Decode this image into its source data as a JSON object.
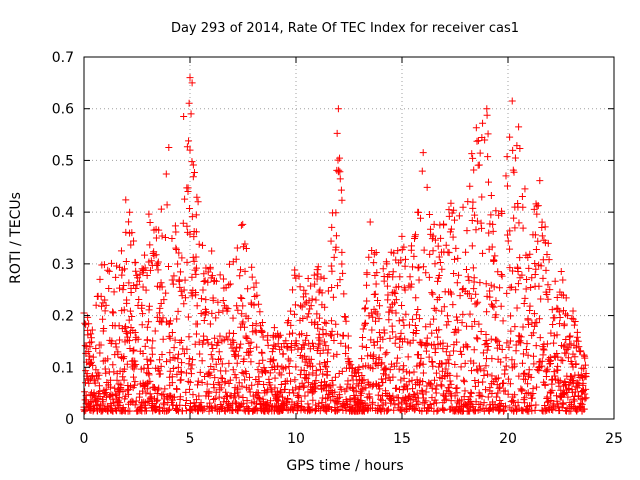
{
  "chart_data": {
    "type": "scatter",
    "title": "Day 293 of 2014, Rate Of TEC Index for receiver cas1",
    "xlabel": "GPS time / hours",
    "ylabel": "ROTI / TECUs",
    "xlim": [
      0,
      25
    ],
    "ylim": [
      0,
      0.7
    ],
    "xticks": [
      0,
      5,
      10,
      15,
      20,
      25
    ],
    "yticks": [
      0,
      0.1,
      0.2,
      0.3,
      0.4,
      0.5,
      0.6,
      0.7
    ],
    "xtick_labels": [
      "0",
      "5",
      "10",
      "15",
      "20",
      "25"
    ],
    "ytick_labels": [
      "0",
      "0.1",
      "0.2",
      "0.3",
      "0.4",
      "0.5",
      "0.6",
      "0.7"
    ],
    "grid": true,
    "marker": "plus",
    "color": "#ff0000",
    "series": [
      {
        "name": "ROTI",
        "envelope_hours": [
          0.0,
          0.5,
          1.0,
          1.5,
          2.0,
          2.5,
          3.0,
          3.5,
          4.0,
          4.5,
          5.0,
          5.5,
          6.0,
          6.5,
          7.0,
          7.5,
          8.0,
          8.5,
          9.0,
          9.5,
          10.0,
          10.5,
          11.0,
          11.5,
          12.0,
          12.5,
          13.0,
          13.5,
          14.0,
          14.5,
          15.0,
          15.5,
          16.0,
          16.5,
          17.0,
          17.5,
          18.0,
          18.5,
          19.0,
          19.5,
          20.0,
          20.5,
          21.0,
          21.5,
          22.0,
          22.5,
          23.0,
          23.5
        ],
        "envelope_max": [
          0.21,
          0.2,
          0.35,
          0.3,
          0.44,
          0.32,
          0.41,
          0.36,
          0.52,
          0.31,
          0.66,
          0.37,
          0.33,
          0.3,
          0.3,
          0.41,
          0.3,
          0.17,
          0.18,
          0.16,
          0.31,
          0.27,
          0.3,
          0.27,
          0.6,
          0.12,
          0.1,
          0.38,
          0.28,
          0.33,
          0.38,
          0.33,
          0.51,
          0.38,
          0.4,
          0.44,
          0.45,
          0.58,
          0.6,
          0.38,
          0.61,
          0.55,
          0.41,
          0.46,
          0.33,
          0.3,
          0.22,
          0.13
        ],
        "outliers": [
          [
            0.0,
            0.205
          ],
          [
            4.0,
            0.525
          ],
          [
            5.0,
            0.66
          ],
          [
            5.1,
            0.65
          ],
          [
            4.7,
            0.585
          ],
          [
            5.05,
            0.59
          ],
          [
            5.0,
            0.52
          ],
          [
            12.0,
            0.6
          ],
          [
            12.0,
            0.478
          ],
          [
            13.5,
            0.381
          ],
          [
            16.0,
            0.515
          ],
          [
            18.8,
            0.572
          ],
          [
            19.0,
            0.6
          ],
          [
            20.2,
            0.615
          ],
          [
            20.5,
            0.565
          ],
          [
            21.5,
            0.461
          ]
        ]
      }
    ]
  }
}
